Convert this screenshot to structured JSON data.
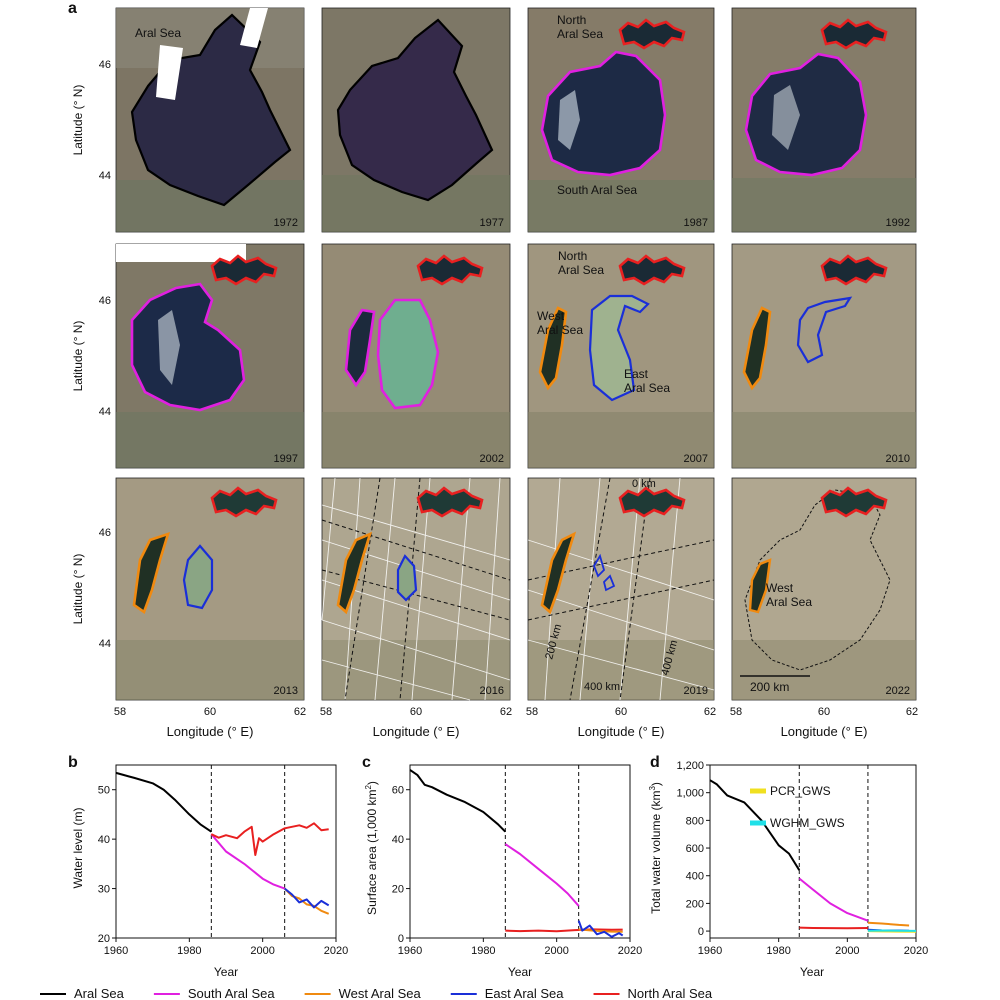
{
  "panel_labels": {
    "a": "a",
    "b": "b",
    "c": "c",
    "d": "d"
  },
  "maps": {
    "years": [
      "1972",
      "1977",
      "1987",
      "1992",
      "1997",
      "2002",
      "2007",
      "2010",
      "2013",
      "2016",
      "2019",
      "2022"
    ],
    "lat_label": "Latitude (° N)",
    "lon_label": "Longitude (° E)",
    "lat_ticks": [
      "46",
      "44"
    ],
    "lon_ticks": [
      "58",
      "60",
      "62"
    ],
    "annotations": {
      "aral_sea": "Aral Sea",
      "north_line1": "North",
      "north_line2": "Aral Sea",
      "south_aral": "South Aral Sea",
      "west_line1": "West",
      "west_line2": "Aral Sea",
      "east_line1": "East",
      "east_line2": "Aral Sea",
      "km_0": "0 km",
      "km_200": "200 km",
      "km_400a": "400 km",
      "km_400b": "400 km",
      "scale_bar": "200 km",
      "west_2022_line1": "West",
      "west_2022_line2": "Aral Sea"
    },
    "colors": {
      "north": "#e82020",
      "south": "#e020e0",
      "west": "#f08a10",
      "east": "#1a2fd8",
      "aral": "#000000"
    }
  },
  "chart_data": [
    {
      "type": "line",
      "panel": "b",
      "xlabel": "Year",
      "ylabel": "Water level (m)",
      "xlim": [
        1960,
        2020
      ],
      "ylim": [
        20,
        55
      ],
      "xticks": [
        1960,
        1980,
        2000,
        2020
      ],
      "yticks": [
        20,
        30,
        40,
        50
      ],
      "vlines": [
        1986,
        2006
      ],
      "series": [
        {
          "name": "Aral Sea",
          "color": "#000000",
          "x": [
            1960,
            1962,
            1965,
            1970,
            1973,
            1976,
            1980,
            1983,
            1986
          ],
          "y": [
            53.4,
            53,
            52.4,
            51.3,
            50,
            48,
            45,
            43,
            41.5
          ]
        },
        {
          "name": "South Aral Sea",
          "color": "#e020e0",
          "x": [
            1986,
            1990,
            1995,
            2000,
            2003,
            2006
          ],
          "y": [
            41,
            37.5,
            35,
            32,
            30.8,
            30
          ]
        },
        {
          "name": "North Aral Sea",
          "color": "#e82020",
          "x": [
            1986,
            1988,
            1990,
            1993,
            1995,
            1997,
            1998,
            1999,
            2000,
            2003,
            2006,
            2008,
            2010,
            2012,
            2014,
            2016,
            2018
          ],
          "y": [
            41,
            40.3,
            40.8,
            40.2,
            41.5,
            42.5,
            36.8,
            40.2,
            39.5,
            41,
            42.2,
            42.5,
            42.8,
            42.3,
            43.2,
            41.8,
            42
          ]
        },
        {
          "name": "West Aral Sea",
          "color": "#f08a10",
          "x": [
            2006,
            2008,
            2010,
            2012,
            2014,
            2016,
            2018
          ],
          "y": [
            30,
            28.5,
            28,
            26.8,
            26.5,
            25.5,
            24.9
          ]
        },
        {
          "name": "East Aral Sea",
          "color": "#1a2fd8",
          "x": [
            2006,
            2008,
            2010,
            2012,
            2014,
            2016,
            2018
          ],
          "y": [
            30,
            28.8,
            27.2,
            27.8,
            26.2,
            27.5,
            26.6
          ]
        }
      ]
    },
    {
      "type": "line",
      "panel": "c",
      "xlabel": "Year",
      "ylabel": "Surface area (1,000 km",
      "ylabel_sup": "2",
      "ylabel_end": ")",
      "xlim": [
        1960,
        2020
      ],
      "ylim": [
        0,
        70
      ],
      "xticks": [
        1960,
        1980,
        2000,
        2020
      ],
      "yticks": [
        0,
        20,
        40,
        60
      ],
      "vlines": [
        1986,
        2006
      ],
      "series": [
        {
          "name": "Aral Sea",
          "color": "#000000",
          "x": [
            1960,
            1962,
            1964,
            1966,
            1970,
            1975,
            1980,
            1984,
            1986
          ],
          "y": [
            68,
            66,
            62,
            61,
            58,
            55,
            51,
            46,
            43
          ]
        },
        {
          "name": "South Aral Sea",
          "color": "#e020e0",
          "x": [
            1986,
            1990,
            1995,
            2000,
            2003,
            2006
          ],
          "y": [
            38,
            34,
            28,
            22,
            18,
            13
          ]
        },
        {
          "name": "North Aral Sea",
          "color": "#e82020",
          "x": [
            1986,
            1990,
            1995,
            2000,
            2005,
            2010,
            2015,
            2018
          ],
          "y": [
            3,
            2.8,
            3,
            2.7,
            3.2,
            3.5,
            3.3,
            3.4
          ]
        },
        {
          "name": "West Aral Sea",
          "color": "#f08a10",
          "x": [
            2006,
            2010,
            2015,
            2018
          ],
          "y": [
            3.5,
            3,
            2.6,
            2.5
          ]
        },
        {
          "name": "East Aral Sea",
          "color": "#1a2fd8",
          "x": [
            2006,
            2007,
            2009,
            2011,
            2013,
            2015,
            2017,
            2018
          ],
          "y": [
            7,
            3,
            5,
            1.5,
            2.5,
            0.5,
            2,
            1
          ]
        }
      ]
    },
    {
      "type": "line",
      "panel": "d",
      "xlabel": "Year",
      "ylabel": "Total water volume (km",
      "ylabel_sup": "3",
      "ylabel_end": ")",
      "xlim": [
        1960,
        2020
      ],
      "ylim": [
        -50,
        1200
      ],
      "xticks": [
        1960,
        1980,
        2000,
        2020
      ],
      "ytick_values": [
        0,
        200,
        400,
        600,
        800,
        1000,
        1200
      ],
      "yticks": [
        "0",
        "200",
        "400",
        "600",
        "800",
        "1,000",
        "1,200"
      ],
      "vlines": [
        1986,
        2006
      ],
      "legend_entries": [
        {
          "label": "PCR_GWS",
          "color": "#f0e020"
        },
        {
          "label": "WGHM_GWS",
          "color": "#20e0e8"
        }
      ],
      "series": [
        {
          "name": "Aral Sea",
          "color": "#000000",
          "x": [
            1960,
            1962,
            1965,
            1970,
            1975,
            1980,
            1983,
            1986
          ],
          "y": [
            1090,
            1060,
            980,
            930,
            800,
            620,
            560,
            440
          ]
        },
        {
          "name": "South Aral Sea",
          "color": "#e020e0",
          "x": [
            1986,
            1990,
            1995,
            2000,
            2006
          ],
          "y": [
            380,
            300,
            200,
            130,
            75
          ]
        },
        {
          "name": "North Aral Sea",
          "color": "#e82020",
          "x": [
            1986,
            1990,
            2000,
            2006
          ],
          "y": [
            25,
            22,
            20,
            22
          ]
        },
        {
          "name": "West Aral Sea",
          "color": "#f08a10",
          "x": [
            2006,
            2010,
            2015,
            2018
          ],
          "y": [
            60,
            55,
            45,
            40
          ]
        },
        {
          "name": "East Aral Sea",
          "color": "#1a2fd8",
          "x": [
            2006,
            2010,
            2015,
            2018
          ],
          "y": [
            10,
            5,
            4,
            3
          ]
        },
        {
          "name": "PCR_GWS",
          "color": "#f0e020",
          "x": [
            2006,
            2010,
            2015,
            2020
          ],
          "y": [
            0,
            -2,
            -4,
            -5
          ]
        },
        {
          "name": "WGHM_GWS",
          "color": "#20e0e8",
          "x": [
            2006,
            2010,
            2015,
            2020
          ],
          "y": [
            3,
            4,
            2,
            1
          ]
        }
      ]
    }
  ],
  "legend": [
    {
      "label": "Aral Sea",
      "color": "#000000"
    },
    {
      "label": "South Aral Sea",
      "color": "#e020e0"
    },
    {
      "label": "West Aral Sea",
      "color": "#f08a10"
    },
    {
      "label": "East Aral Sea",
      "color": "#1a2fd8"
    },
    {
      "label": "North Aral Sea",
      "color": "#e82020"
    }
  ]
}
